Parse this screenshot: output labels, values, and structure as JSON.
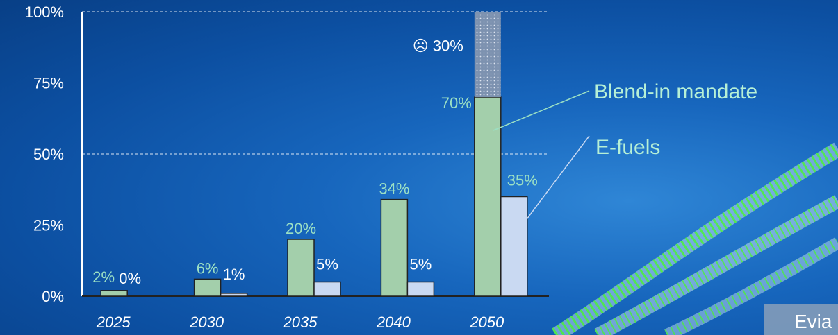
{
  "chart_data": {
    "type": "bar",
    "categories": [
      "2025",
      "2030",
      "2035",
      "2040",
      "2050"
    ],
    "series": [
      {
        "name": "Blend-in mandate",
        "values": [
          2,
          6,
          20,
          34,
          70
        ],
        "labels": [
          "2%",
          "6%",
          "20%",
          "34%",
          "70%"
        ],
        "color": "#a3cfab"
      },
      {
        "name": "E-fuels",
        "values": [
          0,
          1,
          5,
          5,
          35
        ],
        "labels": [
          "0%",
          "1%",
          "5%",
          "5%",
          "35%"
        ],
        "color": "#c9d9f2"
      }
    ],
    "gap": {
      "category": "2050",
      "from": 70,
      "to": 100,
      "label": "☹ 30%"
    },
    "yticks": [
      "0%",
      "25%",
      "50%",
      "75%",
      "100%"
    ],
    "ylim": [
      0,
      100
    ],
    "grid": true,
    "legend": [
      "Blend-in mandate",
      "E-fuels"
    ]
  },
  "corner_text": "Evia"
}
